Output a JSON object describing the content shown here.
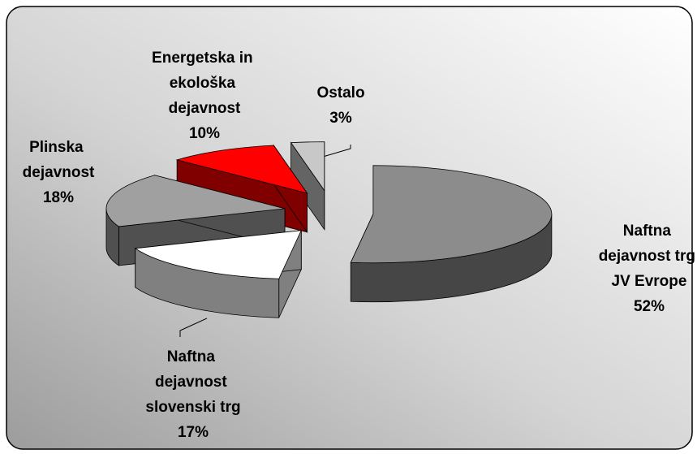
{
  "chart_data": {
    "type": "pie3d",
    "categories": [
      "Naftna dejavnost trg JV Evrope",
      "Naftna dejavnost slovenski trg",
      "Plinska dejavnost",
      "Energetska in ekološka dejavnost",
      "Ostalo"
    ],
    "values": [
      52,
      17,
      18,
      10,
      3
    ],
    "value_labels": [
      "52%",
      "17%",
      "18%",
      "10%",
      "3%"
    ],
    "colors": [
      "#8c8c8c",
      "#ffffff",
      "#a0a0a0",
      "#ff0000",
      "#c8c8c8"
    ]
  }
}
